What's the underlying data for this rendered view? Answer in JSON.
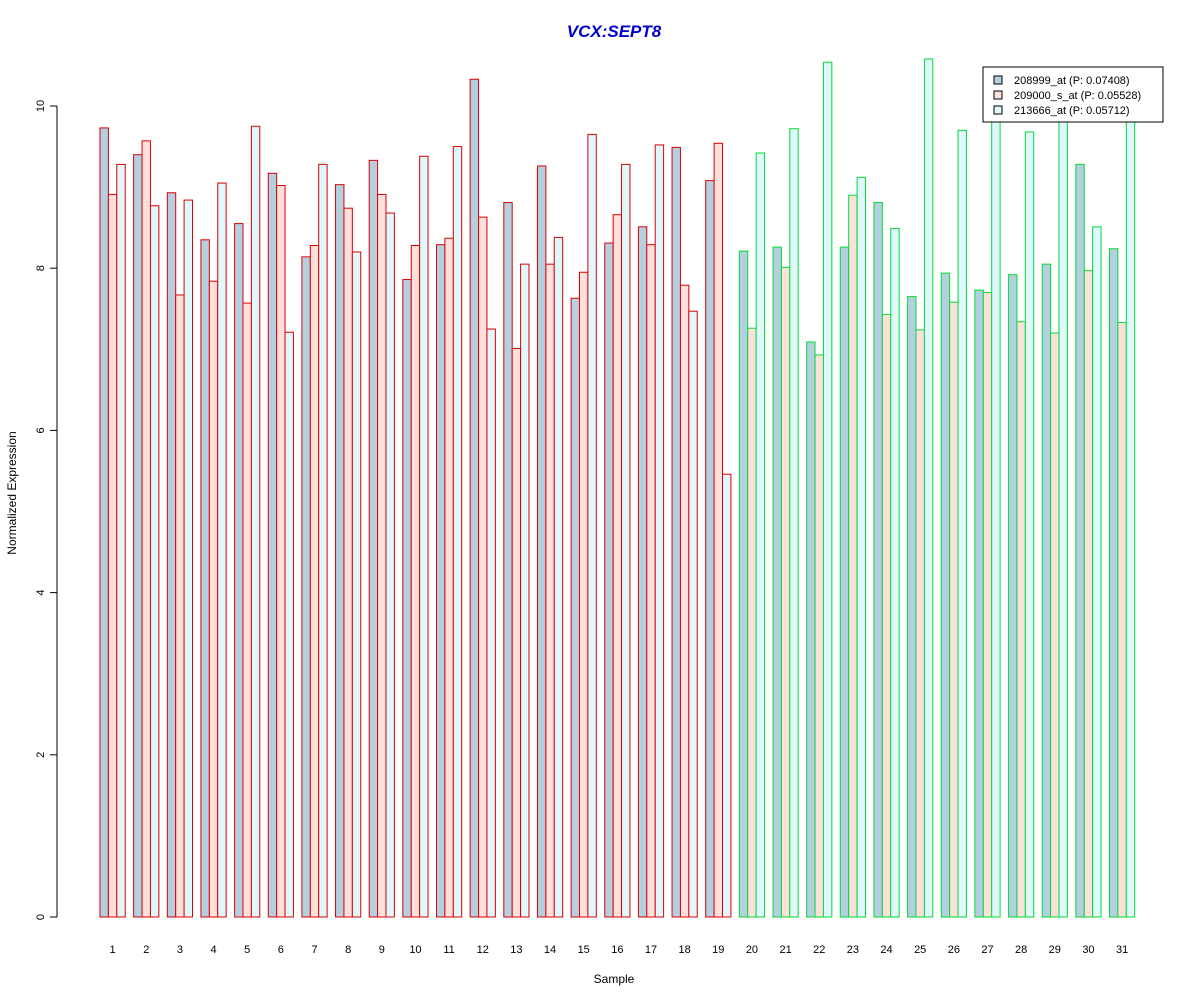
{
  "chart_data": {
    "type": "bar",
    "title": "VCX:SEPT8",
    "xlabel": "Sample",
    "ylabel": "Normalized Expression",
    "ylim": [
      0,
      10
    ],
    "yticks": [
      "0",
      "2",
      "4",
      "6",
      "8",
      "10"
    ],
    "grid": false,
    "legend_position": "top-right",
    "categories": [
      "1",
      "2",
      "3",
      "4",
      "5",
      "6",
      "7",
      "8",
      "9",
      "10",
      "11",
      "12",
      "13",
      "14",
      "15",
      "16",
      "17",
      "18",
      "19",
      "20",
      "21",
      "22",
      "23",
      "24",
      "25",
      "26",
      "27",
      "28",
      "29",
      "30",
      "31"
    ],
    "groups": [
      {
        "samples": 19,
        "edge_color": "#dd0000"
      },
      {
        "samples": 12,
        "edge_color": "#00dd33"
      }
    ],
    "series": [
      {
        "name": "208999_at (P: 0.07408)",
        "fill": "#b3cfe0",
        "values": [
          9.73,
          9.4,
          8.93,
          8.35,
          8.55,
          9.17,
          8.14,
          9.03,
          9.33,
          7.86,
          8.29,
          10.33,
          8.81,
          9.26,
          7.63,
          8.31,
          8.51,
          9.49,
          9.08,
          8.21,
          8.26,
          7.09,
          8.26,
          8.81,
          7.65,
          7.94,
          7.73,
          7.92,
          8.05,
          9.28,
          8.24
        ]
      },
      {
        "name": "209000_s_at (P: 0.05528)",
        "fill": "#fde0dc",
        "values": [
          8.91,
          9.57,
          7.67,
          7.84,
          7.57,
          9.02,
          8.28,
          8.74,
          8.91,
          8.28,
          8.37,
          8.63,
          7.01,
          8.05,
          7.95,
          8.66,
          8.29,
          7.79,
          9.54,
          7.26,
          8.01,
          6.93,
          8.9,
          7.43,
          7.24,
          7.58,
          7.7,
          7.34,
          7.2,
          7.97,
          7.33
        ]
      },
      {
        "name": "213666_at (P: 0.05712)",
        "fill": "#e0f8fc",
        "values": [
          9.28,
          8.77,
          8.84,
          9.05,
          9.75,
          7.21,
          9.28,
          8.2,
          8.68,
          9.38,
          9.5,
          7.25,
          8.05,
          8.38,
          9.65,
          9.28,
          9.52,
          7.47,
          5.46,
          9.42,
          9.72,
          10.54,
          9.12,
          8.49,
          10.58,
          9.7,
          9.85,
          9.68,
          9.85,
          8.51,
          9.85
        ]
      }
    ]
  }
}
